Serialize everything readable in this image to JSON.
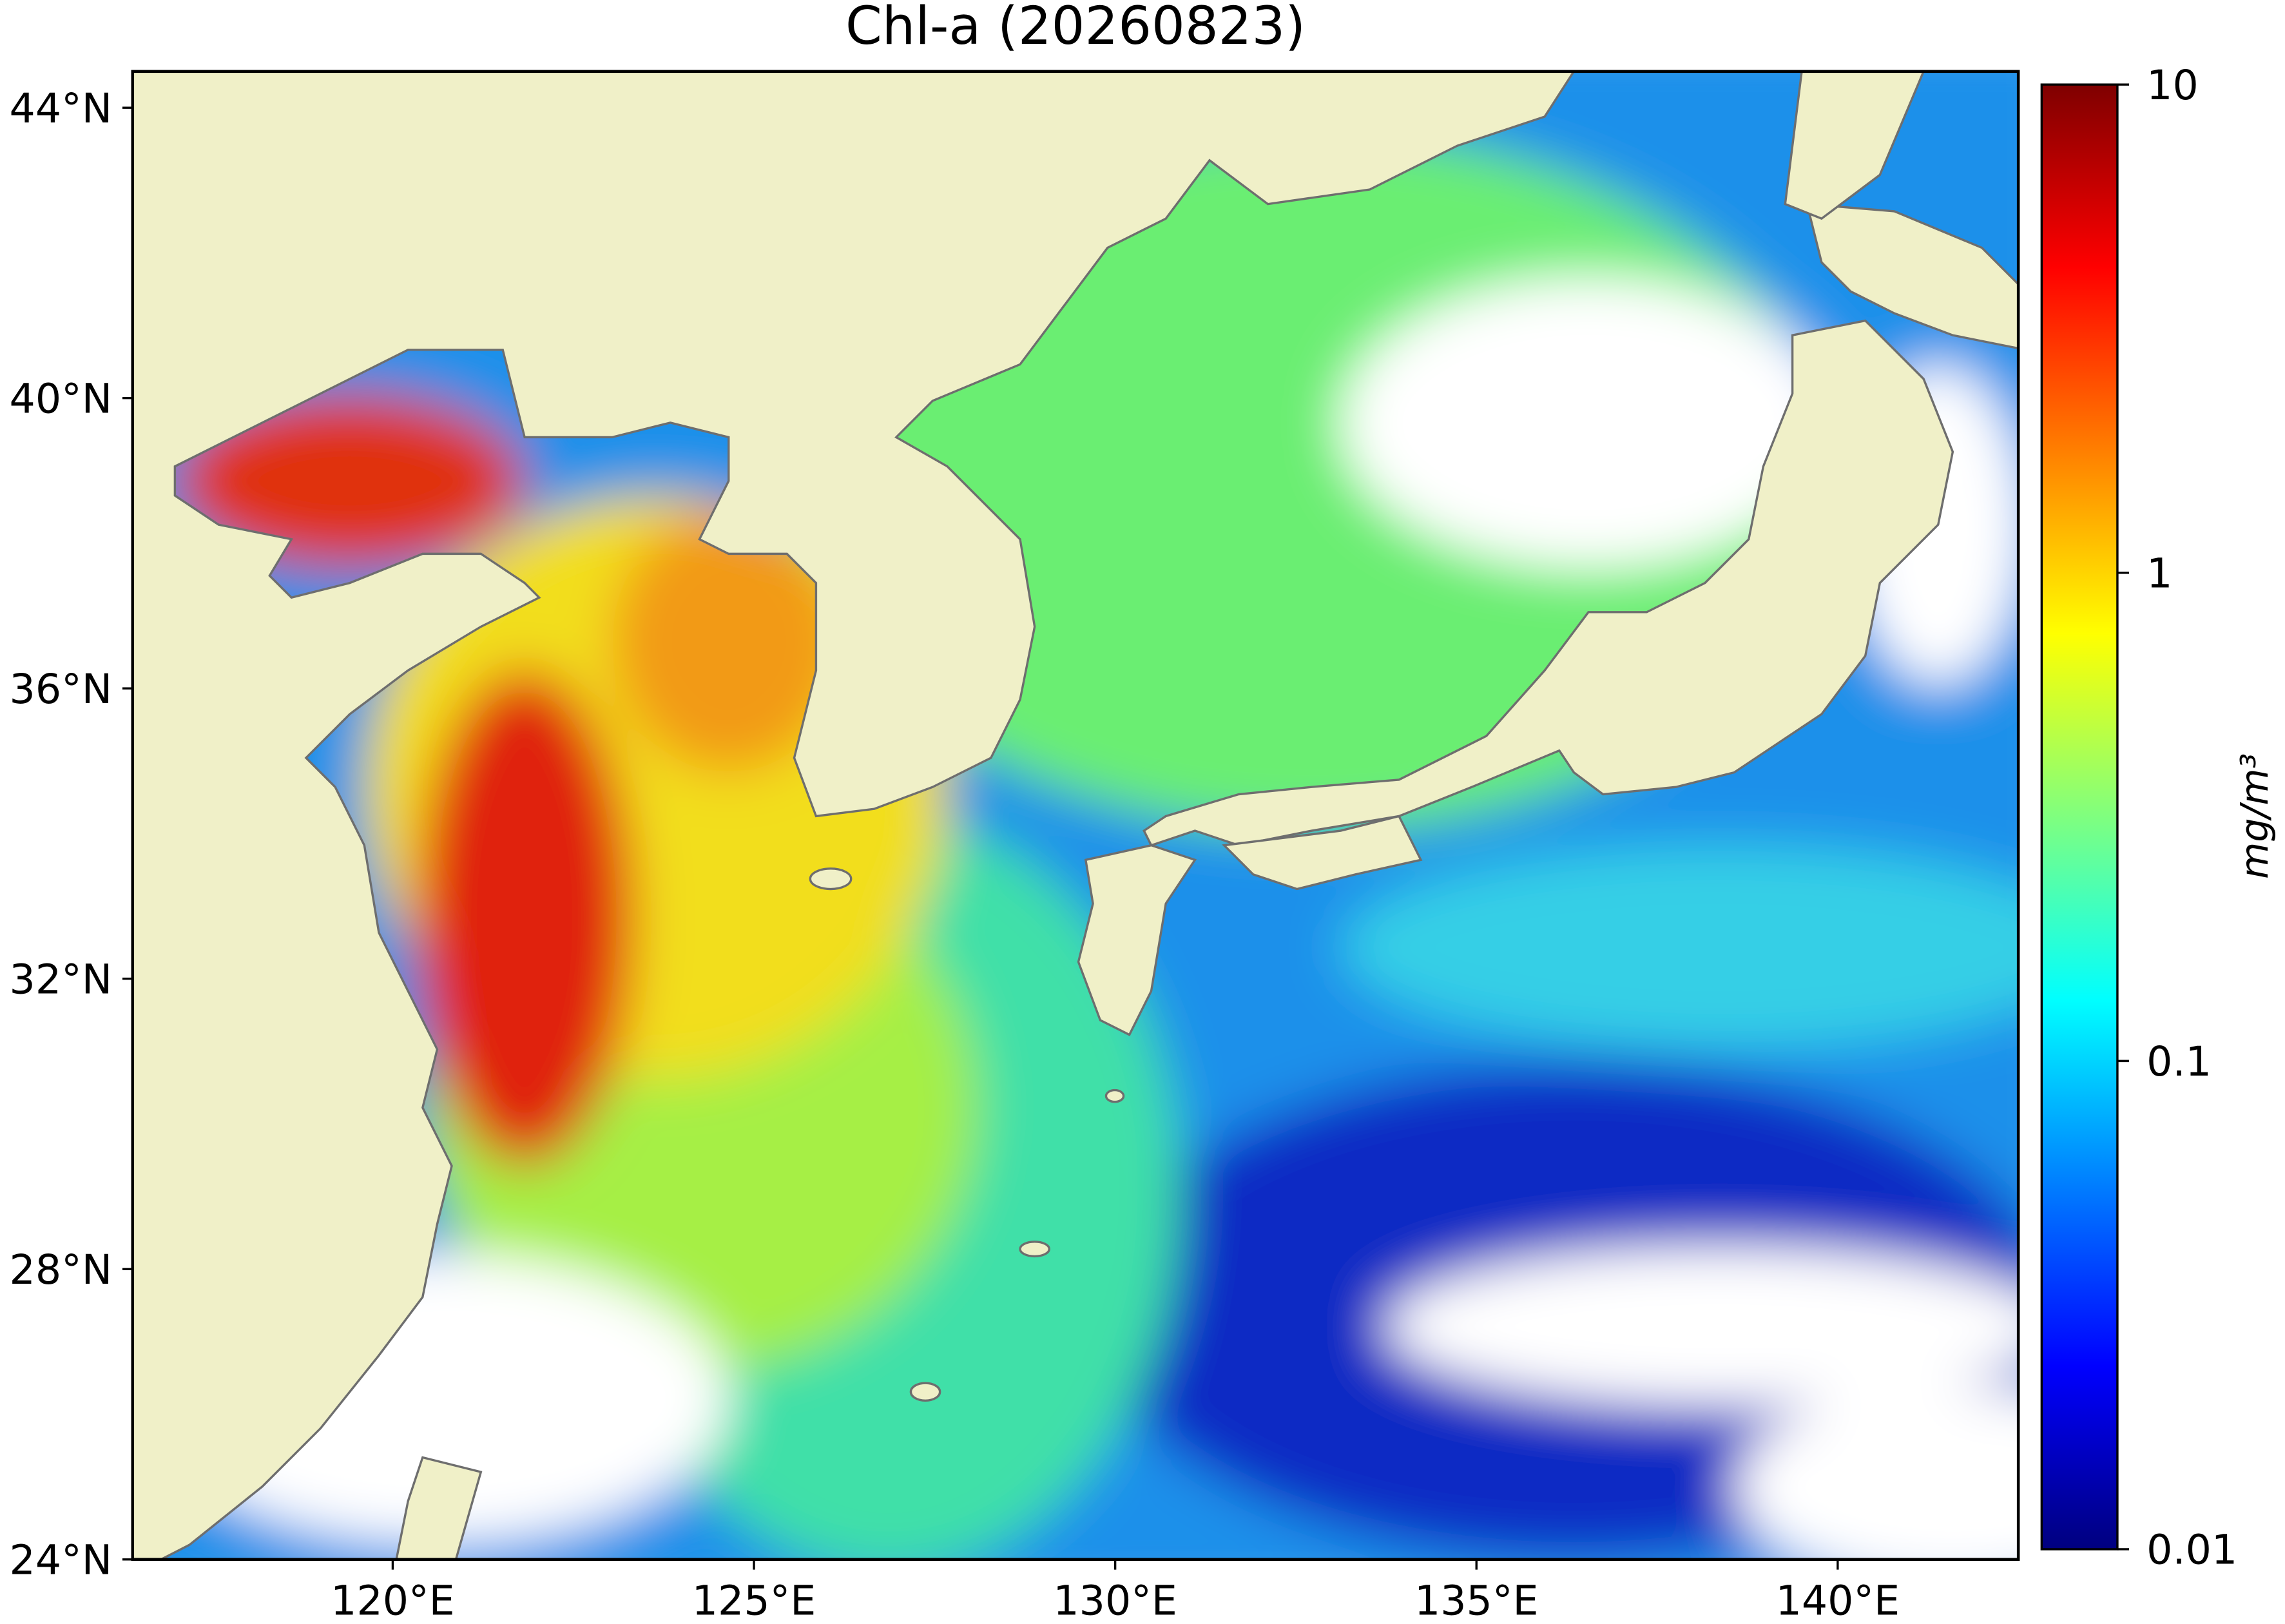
{
  "title": "Chl-a (20260823)",
  "map": {
    "xlim": [
      116.4,
      142.5
    ],
    "ylim": [
      24,
      44.5
    ],
    "xticks": [
      {
        "value": 120,
        "label": "120°E"
      },
      {
        "value": 125,
        "label": "125°E"
      },
      {
        "value": 130,
        "label": "130°E"
      },
      {
        "value": 135,
        "label": "135°E"
      },
      {
        "value": 140,
        "label": "140°E"
      }
    ],
    "yticks": [
      {
        "value": 24,
        "label": "24°N"
      },
      {
        "value": 28,
        "label": "28°N"
      },
      {
        "value": 32,
        "label": "32°N"
      },
      {
        "value": 36,
        "label": "36°N"
      },
      {
        "value": 40,
        "label": "40°N"
      },
      {
        "value": 44,
        "label": "44°N"
      }
    ],
    "land_color": "#f0f0c8",
    "coast_color": "#6e6e6e"
  },
  "colorbar": {
    "scale": "log",
    "lim": [
      0.01,
      10
    ],
    "ticks": [
      0.01,
      0.1,
      1,
      10
    ],
    "label": "mg/m³",
    "colormap": "jet"
  }
}
